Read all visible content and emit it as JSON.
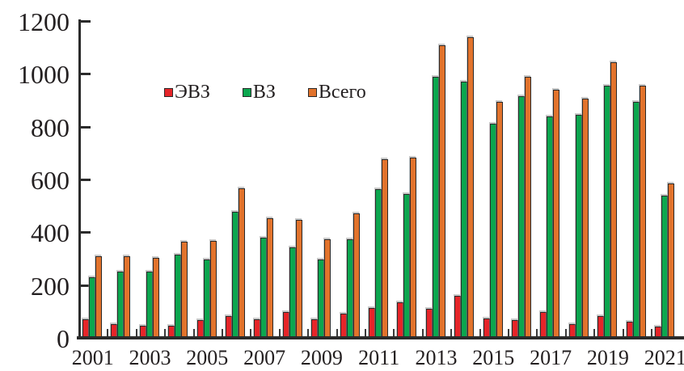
{
  "chart_data": {
    "type": "bar",
    "title": "",
    "xlabel": "",
    "ylabel": "",
    "categories": [
      2001,
      2002,
      2003,
      2004,
      2005,
      2006,
      2007,
      2008,
      2009,
      2010,
      2011,
      2012,
      2013,
      2014,
      2015,
      2016,
      2017,
      2018,
      2019,
      2020,
      2021
    ],
    "series": [
      {
        "name": "ЭВЗ",
        "slug": "evz",
        "color": "#e62529",
        "values": [
          70,
          52,
          45,
          47,
          67,
          83,
          69,
          99,
          70,
          92,
          112,
          135,
          110,
          158,
          75,
          67,
          98,
          52,
          84,
          62,
          42
        ]
      },
      {
        "name": "ВЗ",
        "slug": "vz",
        "color": "#0ca64f",
        "values": [
          230,
          250,
          250,
          315,
          297,
          477,
          380,
          344,
          297,
          375,
          562,
          545,
          988,
          970,
          812,
          916,
          838,
          846,
          954,
          893,
          538
        ]
      },
      {
        "name": "Всего",
        "slug": "vsego",
        "color": "#e2732c",
        "values": [
          310,
          310,
          302,
          363,
          368,
          565,
          452,
          448,
          372,
          471,
          678,
          684,
          1108,
          1140,
          895,
          989,
          940,
          905,
          1043,
          955,
          584
        ]
      }
    ],
    "ylim": [
      0,
      1200
    ],
    "yticks": [
      0,
      200,
      400,
      600,
      800,
      1000,
      1200
    ],
    "ytick_labels": [
      "0",
      "200",
      "400",
      "600",
      "800",
      "1000",
      "1200"
    ],
    "xtick_labels": [
      "2001",
      "2003",
      "2005",
      "2007",
      "2009",
      "2011",
      "2013",
      "2015",
      "2017",
      "2019",
      "2021"
    ],
    "grid": false,
    "legend_position": "inside-top-left",
    "axis_color": "#2b2b2b",
    "text_color": "#231f20"
  }
}
